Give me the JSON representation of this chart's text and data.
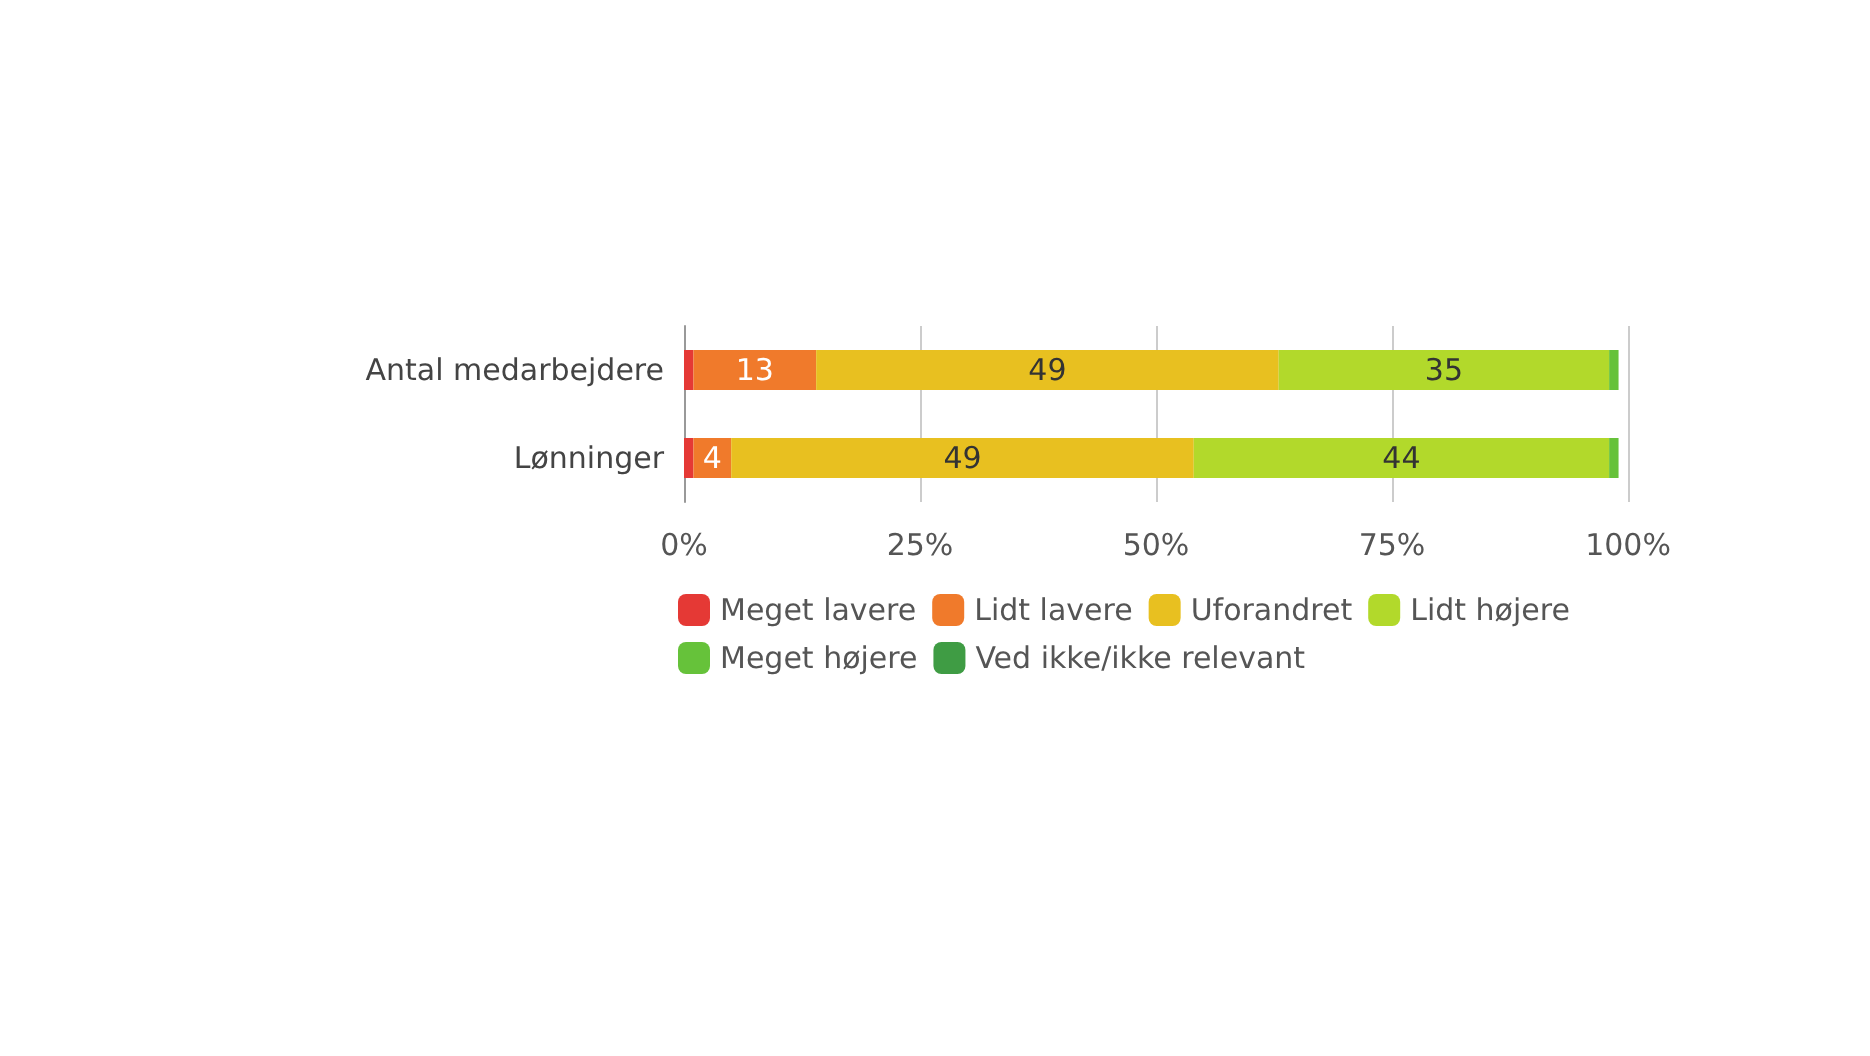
{
  "chart_data": {
    "type": "bar",
    "orientation": "horizontal",
    "stacked": true,
    "categories": [
      "Antal medarbejdere",
      "Lønninger"
    ],
    "series": [
      {
        "name": "Meget lavere",
        "color": "#e53935",
        "values": [
          1,
          1
        ],
        "value_labels": [
          null,
          null
        ]
      },
      {
        "name": "Lidt lavere",
        "color": "#f07a2b",
        "values": [
          13,
          4
        ],
        "value_labels": [
          "13",
          "4"
        ]
      },
      {
        "name": "Uforandret",
        "color": "#e8c020",
        "values": [
          49,
          49
        ],
        "value_labels": [
          "49",
          "49"
        ]
      },
      {
        "name": "Lidt højere",
        "color": "#b2d92b",
        "values": [
          35,
          44
        ],
        "value_labels": [
          "35",
          "44"
        ]
      },
      {
        "name": "Meget højere",
        "color": "#66c23a",
        "values": [
          1,
          1
        ],
        "value_labels": [
          null,
          null
        ]
      },
      {
        "name": "Ved ikke/ikke relevant",
        "color": "#3f9c44",
        "values": [
          0,
          0
        ],
        "value_labels": [
          null,
          null
        ]
      }
    ],
    "xlim": [
      0,
      100
    ],
    "xticks": [
      {
        "value": 0,
        "label": "0%"
      },
      {
        "value": 25,
        "label": "25%"
      },
      {
        "value": 50,
        "label": "50%"
      },
      {
        "value": 75,
        "label": "75%"
      },
      {
        "value": 100,
        "label": "100%"
      }
    ],
    "grid": "x",
    "legend": "bottom"
  }
}
